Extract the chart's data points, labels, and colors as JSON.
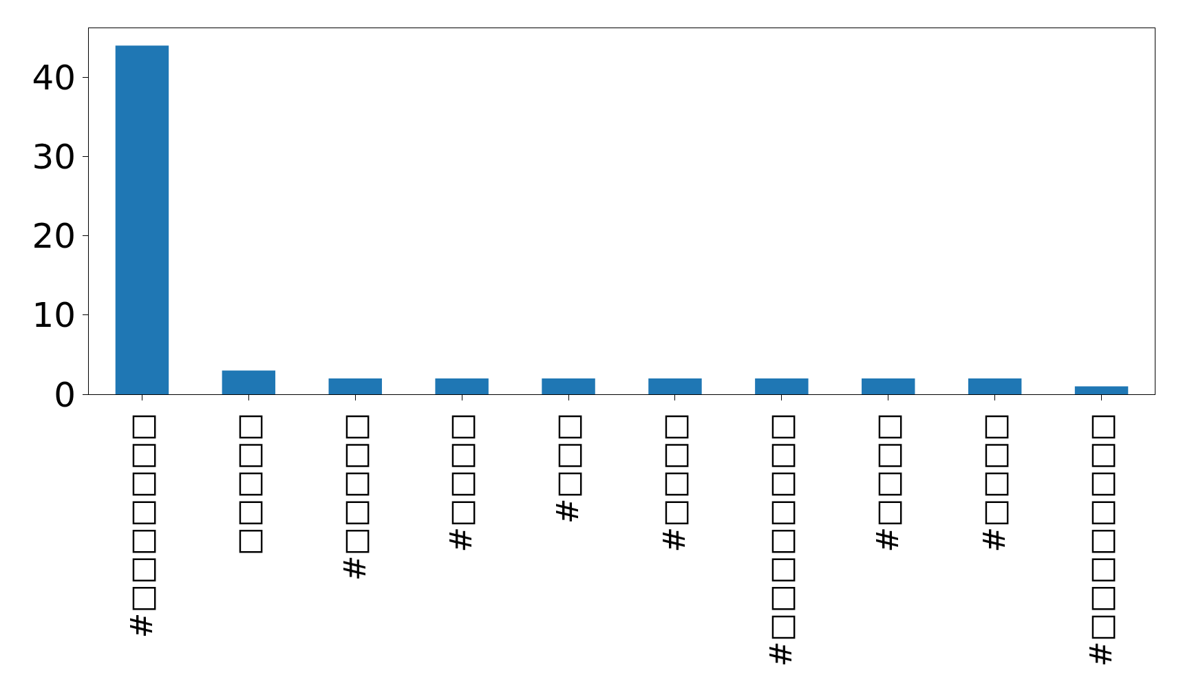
{
  "chart_data": {
    "type": "bar",
    "categories": [
      "#□□□□□□□",
      "□□□□□",
      "#□□□□□",
      "#□□□□",
      "#□□□",
      "#□□□□",
      "#□□□□□□□□",
      "#□□□□",
      "#□□□□",
      "#□□□□□□□□"
    ],
    "values": [
      44,
      3,
      2,
      2,
      2,
      2,
      2,
      2,
      2,
      1
    ],
    "color": "#1f77b4",
    "ylim": [
      0,
      46.2
    ],
    "yticks": [
      0,
      10,
      20,
      30,
      40
    ]
  }
}
